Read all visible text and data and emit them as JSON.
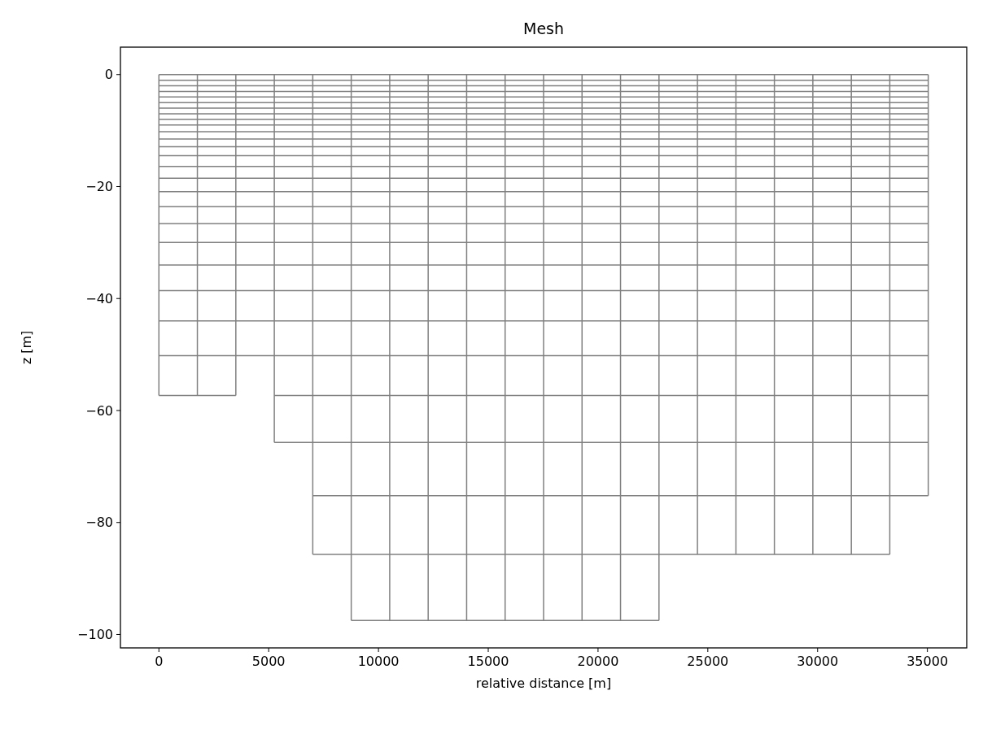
{
  "chart_data": {
    "type": "line",
    "title": "Mesh",
    "xlabel": "relative distance [m]",
    "ylabel": "z [m]",
    "xlim": [
      -1752,
      36792
    ],
    "ylim": [
      -102.4,
      4.9
    ],
    "xticks": [
      0,
      5000,
      10000,
      15000,
      20000,
      25000,
      30000,
      35000
    ],
    "yticks": [
      {
        "value": -100,
        "label": "−100"
      },
      {
        "value": -80,
        "label": "−80"
      },
      {
        "value": -60,
        "label": "−60"
      },
      {
        "value": -40,
        "label": "−40"
      },
      {
        "value": -20,
        "label": "−20"
      },
      0
    ],
    "grid": false,
    "series": [
      {
        "color": "#808080",
        "x": [
          0,
          35040
        ],
        "values": [
          0,
          0
        ]
      },
      {
        "color": "#808080",
        "x": [
          0,
          35040
        ],
        "values": [
          -1,
          -1
        ]
      },
      {
        "color": "#808080",
        "x": [
          0,
          35040
        ],
        "values": [
          -2,
          -2
        ]
      },
      {
        "color": "#808080",
        "x": [
          0,
          35040
        ],
        "values": [
          -3,
          -3
        ]
      },
      {
        "color": "#808080",
        "x": [
          0,
          35040
        ],
        "values": [
          -4,
          -4
        ]
      },
      {
        "color": "#808080",
        "x": [
          0,
          35040
        ],
        "values": [
          -5,
          -5
        ]
      },
      {
        "color": "#808080",
        "x": [
          0,
          35040
        ],
        "values": [
          -6,
          -6
        ]
      },
      {
        "color": "#808080",
        "x": [
          0,
          35040
        ],
        "values": [
          -7,
          -7
        ]
      },
      {
        "color": "#808080",
        "x": [
          0,
          35040
        ],
        "values": [
          -8,
          -8
        ]
      },
      {
        "color": "#808080",
        "x": [
          0,
          35040
        ],
        "values": [
          -9,
          -9
        ]
      },
      {
        "color": "#808080",
        "x": [
          0,
          35040
        ],
        "values": [
          -10.2,
          -10.2
        ]
      },
      {
        "color": "#808080",
        "x": [
          0,
          35040
        ],
        "values": [
          -11.5,
          -11.5
        ]
      },
      {
        "color": "#808080",
        "x": [
          0,
          35040
        ],
        "values": [
          -12.9,
          -12.9
        ]
      },
      {
        "color": "#808080",
        "x": [
          0,
          35040
        ],
        "values": [
          -14.5,
          -14.5
        ]
      },
      {
        "color": "#808080",
        "x": [
          0,
          35040
        ],
        "values": [
          -16.4,
          -16.4
        ]
      },
      {
        "color": "#808080",
        "x": [
          0,
          35040
        ],
        "values": [
          -18.5,
          -18.5
        ]
      },
      {
        "color": "#808080",
        "x": [
          0,
          35040
        ],
        "values": [
          -20.9,
          -20.9
        ]
      },
      {
        "color": "#808080",
        "x": [
          0,
          35040
        ],
        "values": [
          -23.6,
          -23.6
        ]
      },
      {
        "color": "#808080",
        "x": [
          0,
          35040
        ],
        "values": [
          -26.6,
          -26.6
        ]
      },
      {
        "color": "#808080",
        "x": [
          0,
          35040
        ],
        "values": [
          -30,
          -30
        ]
      },
      {
        "color": "#808080",
        "x": [
          0,
          35040
        ],
        "values": [
          -34,
          -34
        ]
      },
      {
        "color": "#808080",
        "x": [
          0,
          35040
        ],
        "values": [
          -38.6,
          -38.6
        ]
      },
      {
        "color": "#808080",
        "x": [
          0,
          35040
        ],
        "values": [
          -44,
          -44
        ]
      },
      {
        "color": "#808080",
        "x": [
          0,
          35040
        ],
        "values": [
          -50.2,
          -50.2
        ]
      },
      {
        "color": "#808080",
        "x": [
          0,
          3504,
          4380,
          5256,
          35040
        ],
        "values": [
          -57.3,
          -57.3,
          null,
          -57.3,
          -57.3
        ]
      },
      {
        "color": "#808080",
        "x": [
          5256,
          35040
        ],
        "values": [
          -65.7,
          -65.7
        ]
      },
      {
        "color": "#808080",
        "x": [
          7008,
          35040
        ],
        "values": [
          -75.2,
          -75.2
        ]
      },
      {
        "color": "#808080",
        "x": [
          7008,
          33288
        ],
        "values": [
          -85.7,
          -85.7
        ]
      },
      {
        "color": "#808080",
        "x": [
          8760,
          22776
        ],
        "values": [
          -97.5,
          -97.5
        ]
      },
      {
        "color": "#808080",
        "x": [
          0,
          0
        ],
        "values": [
          0,
          -57.3
        ]
      },
      {
        "color": "#808080",
        "x": [
          1752,
          1752
        ],
        "values": [
          0,
          -57.3
        ]
      },
      {
        "color": "#808080",
        "x": [
          3504,
          3504
        ],
        "values": [
          0,
          -57.3
        ]
      },
      {
        "color": "#808080",
        "x": [
          5256,
          5256
        ],
        "values": [
          0,
          -65.7
        ]
      },
      {
        "color": "#808080",
        "x": [
          7008,
          7008
        ],
        "values": [
          0,
          -85.7
        ]
      },
      {
        "color": "#808080",
        "x": [
          8760,
          8760
        ],
        "values": [
          0,
          -97.5
        ]
      },
      {
        "color": "#808080",
        "x": [
          10512,
          10512
        ],
        "values": [
          0,
          -97.5
        ]
      },
      {
        "color": "#808080",
        "x": [
          12264,
          12264
        ],
        "values": [
          0,
          -97.5
        ]
      },
      {
        "color": "#808080",
        "x": [
          14016,
          14016
        ],
        "values": [
          0,
          -97.5
        ]
      },
      {
        "color": "#808080",
        "x": [
          15768,
          15768
        ],
        "values": [
          0,
          -97.5
        ]
      },
      {
        "color": "#808080",
        "x": [
          17520,
          17520
        ],
        "values": [
          0,
          -97.5
        ]
      },
      {
        "color": "#808080",
        "x": [
          19272,
          19272
        ],
        "values": [
          0,
          -97.5
        ]
      },
      {
        "color": "#808080",
        "x": [
          21024,
          21024
        ],
        "values": [
          0,
          -97.5
        ]
      },
      {
        "color": "#808080",
        "x": [
          22776,
          22776
        ],
        "values": [
          0,
          -97.5
        ]
      },
      {
        "color": "#808080",
        "x": [
          24528,
          24528
        ],
        "values": [
          0,
          -85.7
        ]
      },
      {
        "color": "#808080",
        "x": [
          26280,
          26280
        ],
        "values": [
          0,
          -85.7
        ]
      },
      {
        "color": "#808080",
        "x": [
          28032,
          28032
        ],
        "values": [
          0,
          -85.7
        ]
      },
      {
        "color": "#808080",
        "x": [
          29784,
          29784
        ],
        "values": [
          0,
          -85.7
        ]
      },
      {
        "color": "#808080",
        "x": [
          31536,
          31536
        ],
        "values": [
          0,
          -85.7
        ]
      },
      {
        "color": "#808080",
        "x": [
          33288,
          33288
        ],
        "values": [
          0,
          -85.7
        ]
      },
      {
        "color": "#808080",
        "x": [
          35040,
          35040
        ],
        "values": [
          0,
          -75.2
        ]
      }
    ]
  }
}
